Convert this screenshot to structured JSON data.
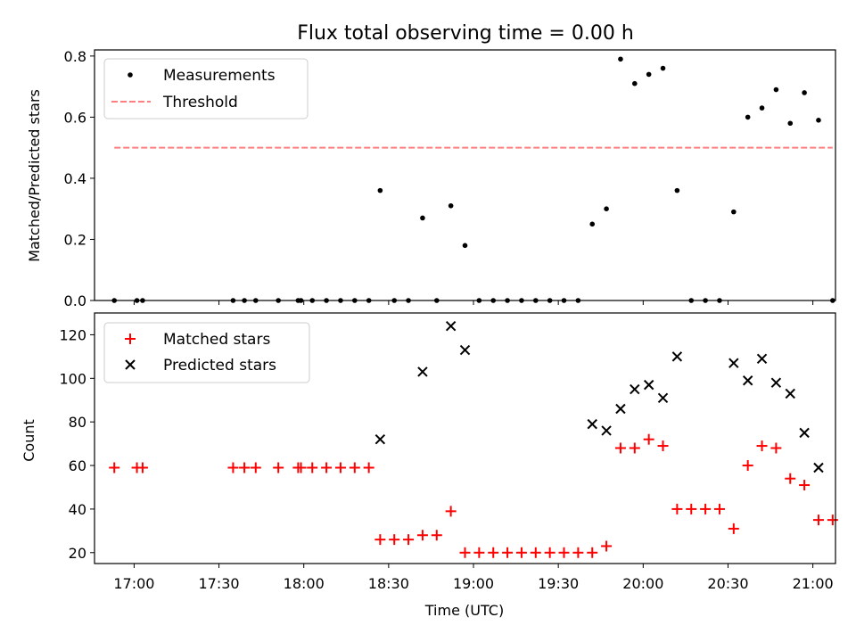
{
  "chart_data": {
    "title": "Flux total observing time = 0.00 h",
    "x_axis": {
      "label": "Time (UTC)",
      "range": [
        "16:46",
        "21:08"
      ],
      "ticks": [
        "17:00",
        "17:30",
        "18:00",
        "18:30",
        "19:00",
        "19:30",
        "20:00",
        "20:30",
        "21:00"
      ]
    },
    "subplots": [
      {
        "type": "scatter",
        "ylabel": "Matched/Predicted stars",
        "ylim": [
          0,
          0.82
        ],
        "yticks": [
          "0.0",
          "0.2",
          "0.4",
          "0.6",
          "0.8"
        ],
        "legend_position": "top-left",
        "series": [
          {
            "name": "Measurements",
            "color": "#000000",
            "marker": "dot",
            "x": [
              "16:53",
              "17:01",
              "17:03",
              "17:35",
              "17:39",
              "17:43",
              "17:51",
              "17:58",
              "17:59",
              "18:03",
              "18:08",
              "18:13",
              "18:18",
              "18:23",
              "18:27",
              "18:32",
              "18:37",
              "18:42",
              "18:47",
              "18:52",
              "18:57",
              "19:02",
              "19:07",
              "19:12",
              "19:17",
              "19:22",
              "19:27",
              "19:32",
              "19:37",
              "19:42",
              "19:47",
              "19:52",
              "19:57",
              "20:02",
              "20:07",
              "20:12",
              "20:17",
              "20:22",
              "20:27",
              "20:32",
              "20:37",
              "20:42",
              "20:47",
              "20:52",
              "20:57",
              "21:02",
              "21:07"
            ],
            "y": [
              0,
              0,
              0,
              0,
              0,
              0,
              0,
              0,
              0,
              0,
              0,
              0,
              0,
              0,
              0.36,
              0,
              0,
              0.27,
              0,
              0.31,
              0.18,
              0,
              0,
              0,
              0,
              0,
              0,
              0,
              0,
              0.25,
              0.3,
              0.79,
              0.71,
              0.74,
              0.76,
              0.36,
              0,
              0,
              0,
              0.29,
              0.6,
              0.63,
              0.69,
              0.58,
              0.68,
              0.59,
              0
            ]
          },
          {
            "name": "Threshold",
            "color": "#ff7f7f",
            "style": "dashed",
            "x": [
              "16:53",
              "21:07"
            ],
            "y": [
              0.5,
              0.5
            ]
          }
        ]
      },
      {
        "type": "scatter",
        "ylabel": "Count",
        "ylim": [
          15,
          130
        ],
        "yticks": [
          "20",
          "40",
          "60",
          "80",
          "100",
          "120"
        ],
        "legend_position": "top-left",
        "series": [
          {
            "name": "Matched stars",
            "color": "#ff0000",
            "marker": "plus",
            "x": [
              "16:53",
              "17:01",
              "17:03",
              "17:35",
              "17:39",
              "17:43",
              "17:51",
              "17:58",
              "17:59",
              "18:03",
              "18:08",
              "18:13",
              "18:18",
              "18:23",
              "18:27",
              "18:32",
              "18:37",
              "18:42",
              "18:47",
              "18:52",
              "18:57",
              "19:02",
              "19:07",
              "19:12",
              "19:17",
              "19:22",
              "19:27",
              "19:32",
              "19:37",
              "19:42",
              "19:47",
              "19:52",
              "19:57",
              "20:02",
              "20:07",
              "20:12",
              "20:17",
              "20:22",
              "20:27",
              "20:32",
              "20:37",
              "20:42",
              "20:47",
              "20:52",
              "20:57",
              "21:02",
              "21:07"
            ],
            "y": [
              59,
              59,
              59,
              59,
              59,
              59,
              59,
              59,
              59,
              59,
              59,
              59,
              59,
              59,
              26,
              26,
              26,
              28,
              28,
              39,
              20,
              20,
              20,
              20,
              20,
              20,
              20,
              20,
              20,
              20,
              23,
              68,
              68,
              72,
              69,
              40,
              40,
              40,
              40,
              31,
              60,
              69,
              68,
              54,
              51,
              35,
              35
            ]
          },
          {
            "name": "Predicted stars",
            "color": "#000000",
            "marker": "x",
            "x": [
              "18:27",
              "18:42",
              "18:52",
              "18:57",
              "19:42",
              "19:47",
              "19:52",
              "19:57",
              "20:02",
              "20:07",
              "20:12",
              "20:32",
              "20:37",
              "20:42",
              "20:47",
              "20:52",
              "20:57",
              "21:02"
            ],
            "y": [
              72,
              103,
              124,
              113,
              79,
              76,
              86,
              95,
              97,
              91,
              110,
              107,
              99,
              109,
              98,
              93,
              75,
              59
            ]
          }
        ]
      }
    ]
  }
}
